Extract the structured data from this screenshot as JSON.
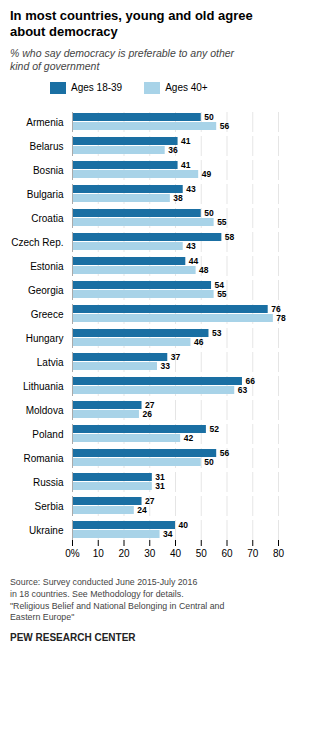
{
  "chart_data": {
    "type": "bar",
    "orientation": "horizontal",
    "title": "In most countries, young and old agree\nabout democracy",
    "subtitle": "% who say democracy is preferable to any other\nkind of government",
    "categories": [
      "Armenia",
      "Belarus",
      "Bosnia",
      "Bulgaria",
      "Croatia",
      "Czech Rep.",
      "Estonia",
      "Georgia",
      "Greece",
      "Hungary",
      "Latvia",
      "Lithuania",
      "Moldova",
      "Poland",
      "Romania",
      "Russia",
      "Serbia",
      "Ukraine"
    ],
    "series": [
      {
        "name": "Ages 18-39",
        "color": "#1a6fa3",
        "values": [
          50,
          41,
          41,
          43,
          50,
          58,
          44,
          54,
          76,
          53,
          37,
          66,
          27,
          52,
          56,
          31,
          27,
          40
        ]
      },
      {
        "name": "Ages 40+",
        "color": "#a8d3e8",
        "values": [
          56,
          36,
          49,
          38,
          55,
          43,
          48,
          55,
          78,
          46,
          33,
          63,
          26,
          42,
          50,
          31,
          24,
          34
        ]
      }
    ],
    "xlim": [
      0,
      80
    ],
    "xticks": [
      {
        "value": 0,
        "label": "0%"
      },
      10,
      20,
      30,
      40,
      50,
      60,
      70,
      80
    ],
    "grid": true,
    "data_labels": true,
    "legend": "top",
    "annotations": [
      "Source: Survey conducted June 2015-July 2016\nin 18 countries. See Methodology for details.\n\"Religious Belief and National Belonging in Central and\nEastern Europe\"",
      "PEW RESEARCH CENTER"
    ]
  }
}
